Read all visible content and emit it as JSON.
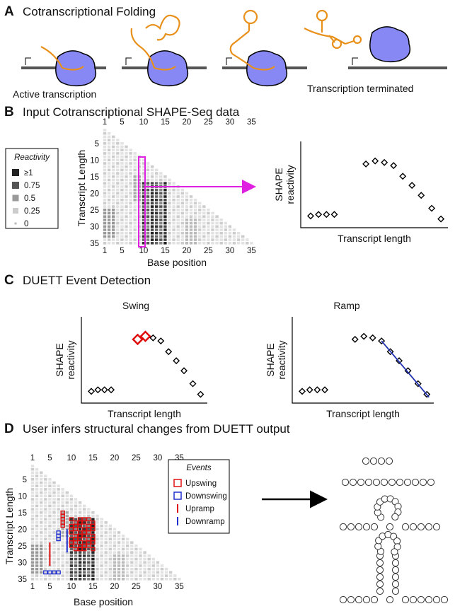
{
  "panel_a": {
    "letter": "A",
    "title": "Cotranscriptional Folding",
    "left_label": "Active transcription",
    "right_label": "Transcription terminated"
  },
  "panel_b": {
    "letter": "B",
    "title": "Input Cotranscriptional SHAPE-Seq data",
    "heatmap": {
      "top_ticks": [
        1,
        5,
        10,
        15,
        20,
        25,
        30,
        35
      ],
      "bottom_ticks": [
        1,
        5,
        10,
        15,
        20,
        25,
        30,
        35
      ],
      "row_ticks": [
        5,
        10,
        15,
        20,
        25,
        30,
        35
      ],
      "y_label": "Transcript Length",
      "x_label": "Base position"
    },
    "legend": {
      "title": "Reactivity",
      "items": [
        "≥1",
        "0.75",
        "0.5",
        "0.25",
        "0"
      ]
    },
    "plot": {
      "y_label_1": "SHAPE",
      "y_label_2": "reactivity",
      "x_label": "Transcript length"
    }
  },
  "panel_c": {
    "letter": "C",
    "title": "DUETT Event Detection",
    "swing": {
      "title": "Swing",
      "y_label_1": "SHAPE",
      "y_label_2": "reactivity",
      "x_label": "Transcript length"
    },
    "ramp": {
      "title": "Ramp",
      "y_label_1": "SHAPE",
      "y_label_2": "reactivity",
      "x_label": "Transcript length"
    }
  },
  "panel_d": {
    "letter": "D",
    "title": "User infers structural changes from DUETT output",
    "heatmap": {
      "top_ticks": [
        1,
        5,
        10,
        15,
        20,
        25,
        30,
        35
      ],
      "bottom_ticks": [
        1,
        5,
        10,
        15,
        20,
        25,
        30,
        35
      ],
      "row_ticks": [
        5,
        10,
        15,
        20,
        25,
        30,
        35
      ],
      "y_label": "Transcript Length",
      "x_label": "Base position"
    },
    "legend": {
      "title": "Events",
      "items": [
        "Upswing",
        "Downswing",
        "Upramp",
        "Downramp"
      ]
    }
  }
}
